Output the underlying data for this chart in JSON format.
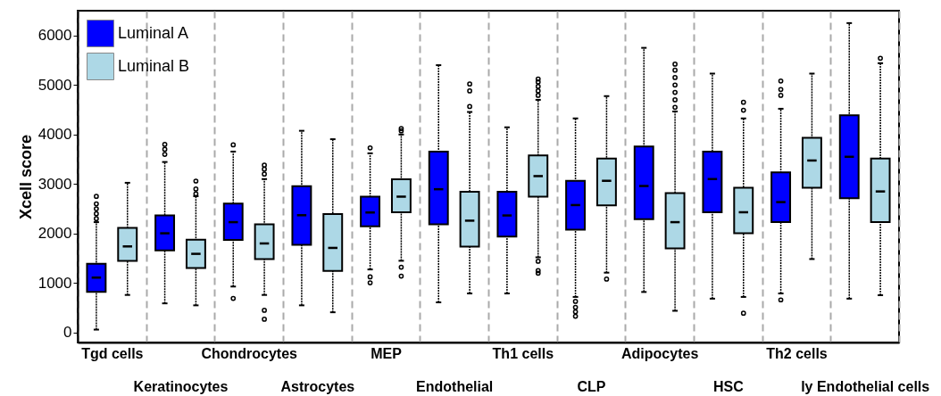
{
  "chart_data": {
    "type": "box",
    "ylabel": "Xcell score",
    "categories": [
      "Tgd cells",
      "Keratinocytes",
      "Chondrocytes",
      "Astrocytes",
      "MEP",
      "Endothelial",
      "Th1 cells",
      "CLP",
      "Adipocytes",
      "HSC",
      "Th2 cells",
      "ly Endothelial cells"
    ],
    "ylim": [
      -200,
      6500
    ],
    "yticks": [
      0,
      1000,
      2000,
      3000,
      4000,
      5000,
      6000
    ],
    "grid": "x",
    "legend": "top left",
    "series": [
      {
        "name": "Luminal A",
        "color": "#0000ff",
        "boxes": [
          {
            "low": 60,
            "q1": 820,
            "median": 1110,
            "q3": 1390,
            "high": 2230,
            "outliers": [
              2300,
              2400,
              2500,
              2600,
              2750
            ]
          },
          {
            "low": 590,
            "q1": 1660,
            "median": 2005,
            "q3": 2365,
            "high": 3445,
            "outliers": [
              3600,
              3700,
              3800
            ]
          },
          {
            "low": 930,
            "q1": 1870,
            "median": 2230,
            "q3": 2605,
            "high": 3655,
            "outliers": [
              690,
              3790
            ]
          },
          {
            "low": 550,
            "q1": 1770,
            "median": 2370,
            "q3": 2955,
            "high": 4075
          },
          {
            "low": 1275,
            "q1": 2145,
            "median": 2425,
            "q3": 2745,
            "high": 3620,
            "outliers": [
              1125,
              1005,
              3730
            ]
          },
          {
            "low": 610,
            "q1": 2185,
            "median": 2895,
            "q3": 3655,
            "high": 5400
          },
          {
            "low": 790,
            "q1": 1940,
            "median": 2365,
            "q3": 2845,
            "high": 4145
          },
          {
            "low": 720,
            "q1": 2080,
            "median": 2575,
            "q3": 3065,
            "high": 4325,
            "outliers": [
              630,
              510,
              420,
              330
            ]
          },
          {
            "low": 820,
            "q1": 2290,
            "median": 2960,
            "q3": 3760,
            "high": 5750
          },
          {
            "low": 685,
            "q1": 2430,
            "median": 3100,
            "q3": 3655,
            "high": 5230
          },
          {
            "low": 790,
            "q1": 2230,
            "median": 2635,
            "q3": 3235,
            "high": 4520,
            "outliers": [
              660,
              4790,
              4910,
              5080
            ]
          },
          {
            "low": 685,
            "q1": 2715,
            "median": 3550,
            "q3": 4390,
            "high": 6250
          }
        ]
      },
      {
        "name": "Luminal B",
        "color": "#add8e6",
        "boxes": [
          {
            "low": 760,
            "q1": 1450,
            "median": 1740,
            "q3": 2115,
            "high": 3025
          },
          {
            "low": 550,
            "q1": 1305,
            "median": 1590,
            "q3": 1875,
            "high": 2755,
            "outliers": [
              2800,
              2900,
              3060
            ]
          },
          {
            "low": 760,
            "q1": 1485,
            "median": 1800,
            "q3": 2185,
            "high": 3100,
            "outliers": [
              450,
              270,
              3200,
              3300,
              3380
            ]
          },
          {
            "low": 410,
            "q1": 1245,
            "median": 1710,
            "q3": 2395,
            "high": 3905
          },
          {
            "low": 1450,
            "q1": 2430,
            "median": 2745,
            "q3": 3095,
            "high": 4000,
            "outliers": [
              1320,
              1140,
              4075,
              4120
            ]
          },
          {
            "low": 790,
            "q1": 1735,
            "median": 2260,
            "q3": 2845,
            "high": 4455,
            "outliers": [
              4565,
              4880,
              5020
            ]
          },
          {
            "low": 1520,
            "q1": 2745,
            "median": 3160,
            "q3": 3580,
            "high": 4700,
            "outliers": [
              1440,
              1250,
              1200,
              4790,
              4880,
              4970,
              5060,
              5120
            ]
          },
          {
            "low": 1210,
            "q1": 2570,
            "median": 3065,
            "q3": 3515,
            "high": 4775,
            "outliers": [
              1080
            ]
          },
          {
            "low": 440,
            "q1": 1700,
            "median": 2230,
            "q3": 2815,
            "high": 4465,
            "outliers": [
              4550,
              4700,
              4850,
              5000,
              5150,
              5300,
              5420
            ]
          },
          {
            "low": 720,
            "q1": 2005,
            "median": 2430,
            "q3": 2925,
            "high": 4325,
            "outliers": [
              390,
              4490,
              4650
            ]
          },
          {
            "low": 1485,
            "q1": 2925,
            "median": 3475,
            "q3": 3935,
            "high": 5230
          },
          {
            "low": 755,
            "q1": 2230,
            "median": 2850,
            "q3": 3515,
            "high": 5440,
            "outliers": [
              5540
            ]
          }
        ]
      }
    ]
  }
}
